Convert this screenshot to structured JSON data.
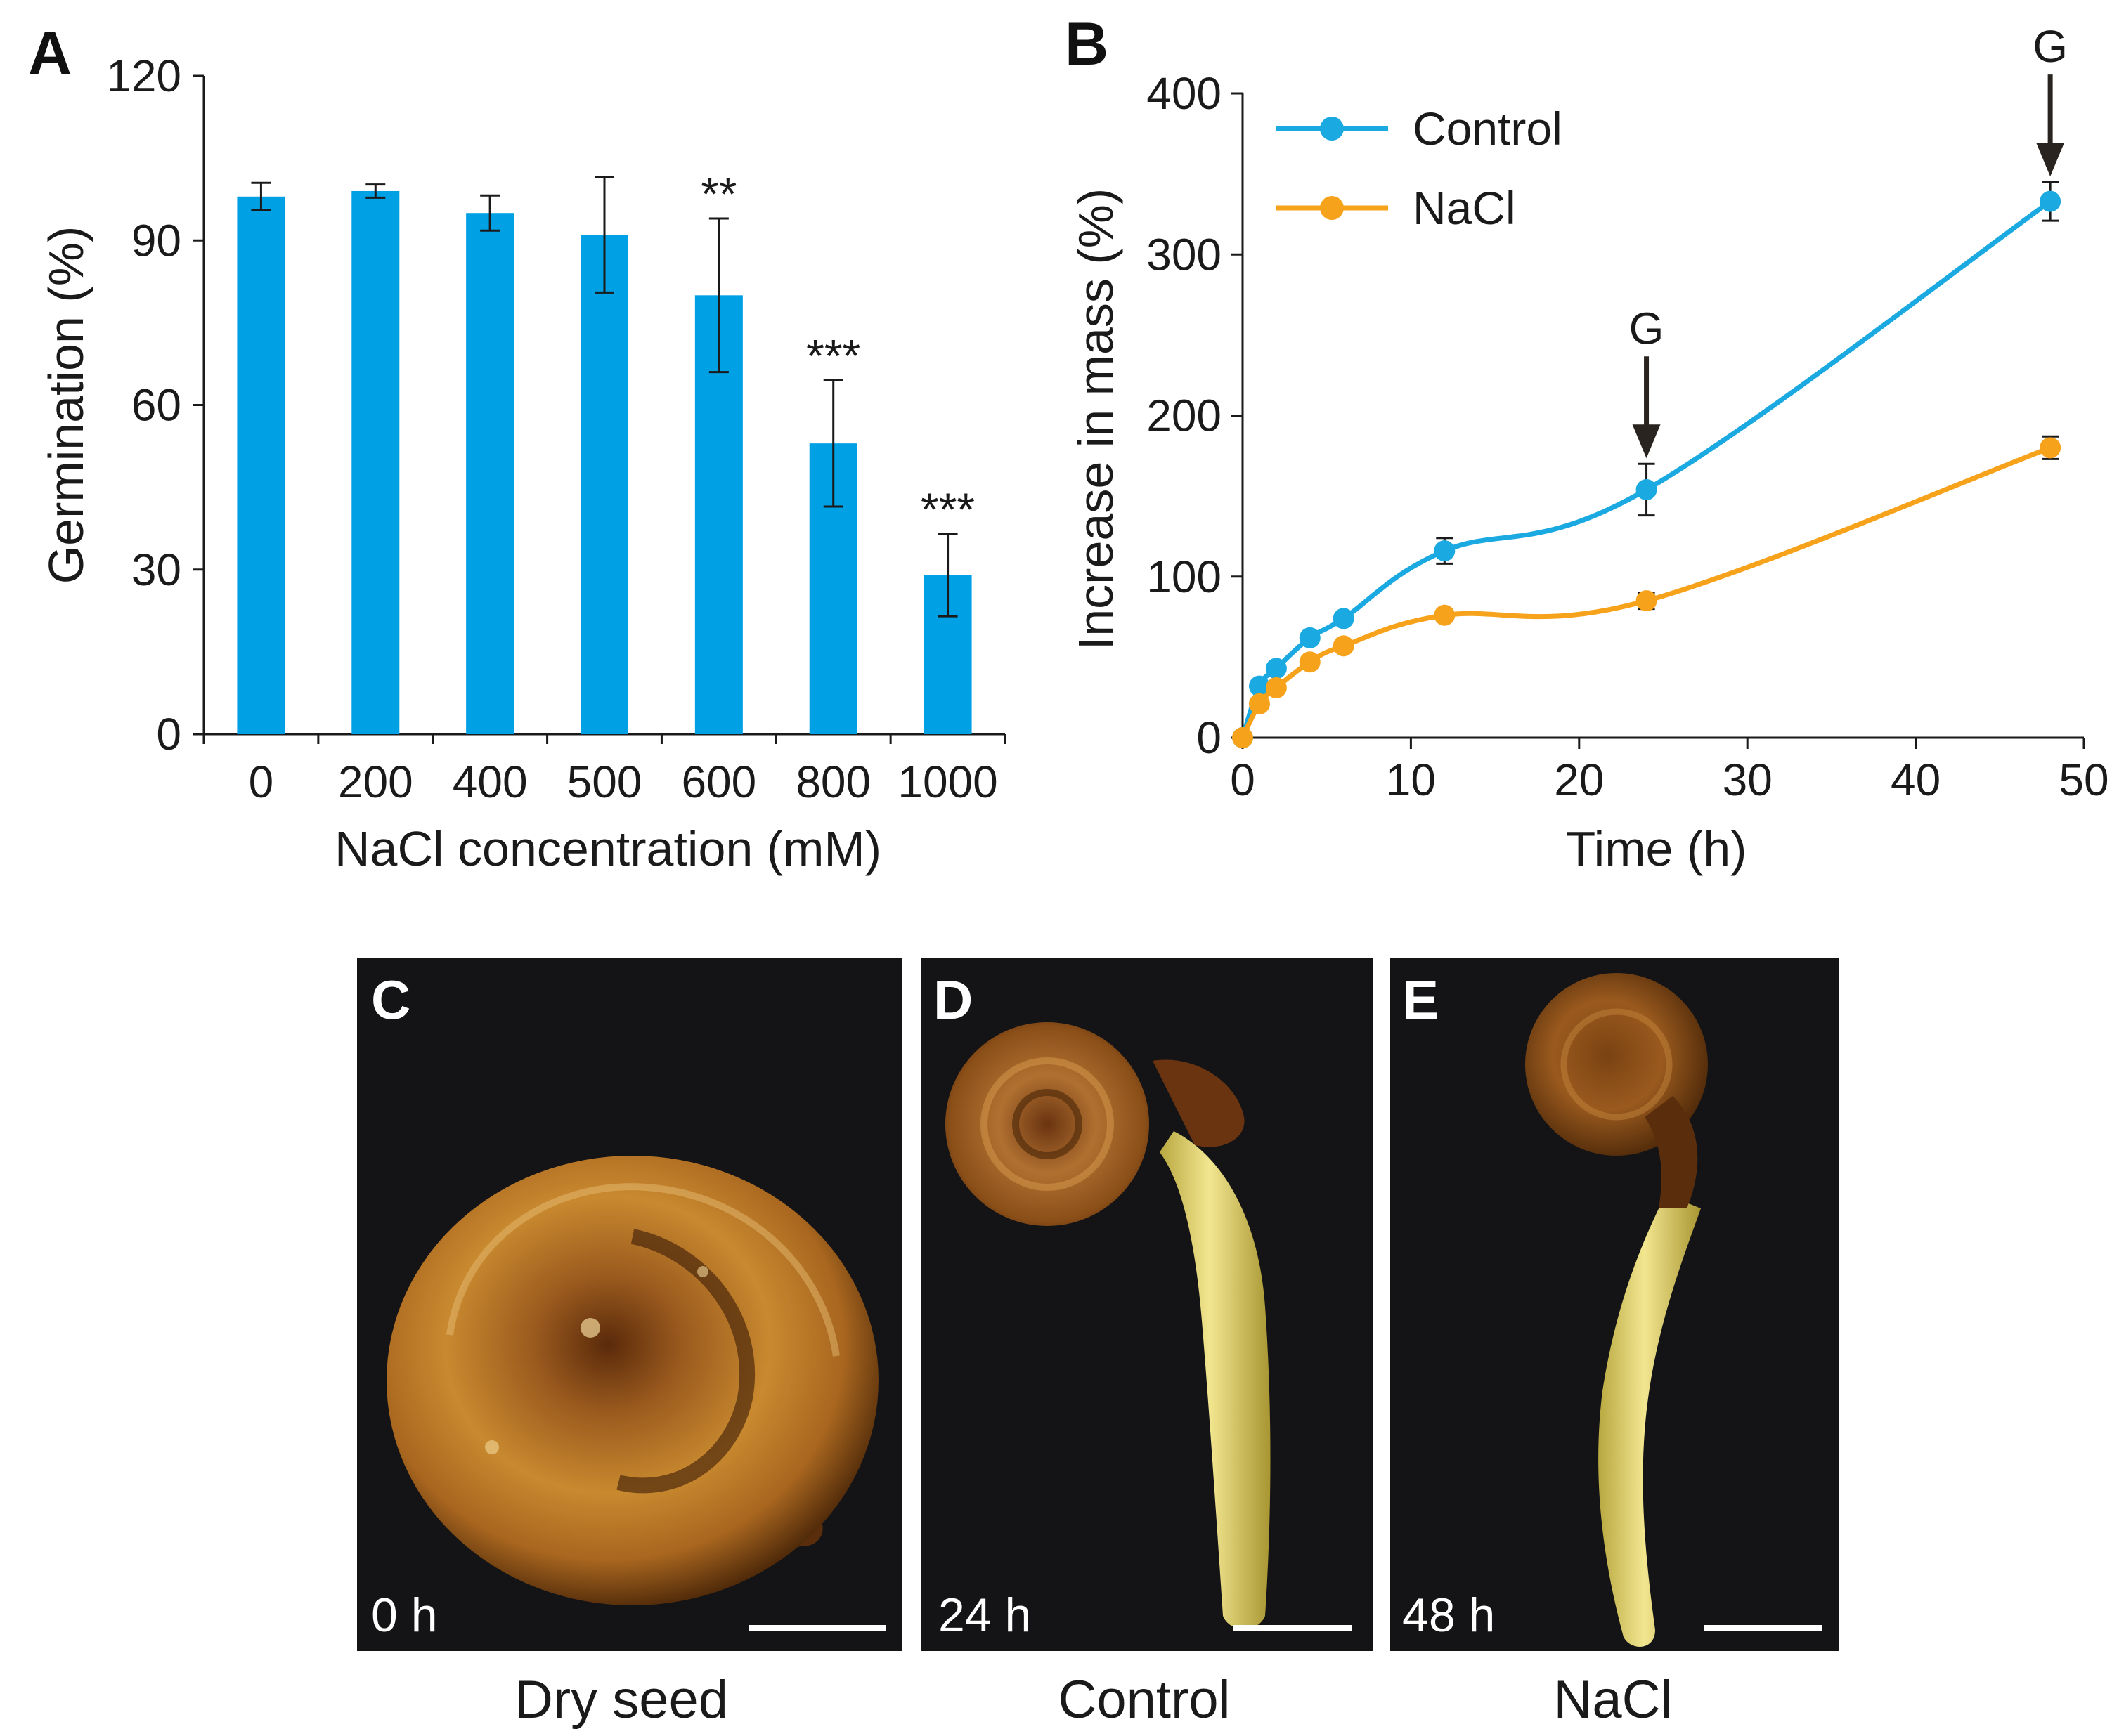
{
  "panels": {
    "A": {
      "letter": "A"
    },
    "B": {
      "letter": "B"
    }
  },
  "chart_data": [
    {
      "type": "bar",
      "panel": "A",
      "categories": [
        "0",
        "200",
        "400",
        "500",
        "600",
        "800",
        "1000"
      ],
      "values": [
        98,
        99,
        95,
        91,
        80,
        53,
        29
      ],
      "errors": [
        2.5,
        1.2,
        3.2,
        10.5,
        14,
        11.5,
        7.5
      ],
      "significance": [
        "",
        "",
        "",
        "",
        "**",
        "***",
        "***"
      ],
      "xlabel": "NaCl concentration (mM)",
      "ylabel": "Germination (%)",
      "ylim": [
        0,
        120
      ],
      "yticks": [
        0,
        30,
        60,
        90,
        120
      ],
      "color": "#00A0E4"
    },
    {
      "type": "line",
      "panel": "B",
      "xlabel": "Time (h)",
      "ylabel": "Increase in mass (%)",
      "xlim": [
        0,
        50
      ],
      "ylim": [
        0,
        400
      ],
      "xticks": [
        0,
        10,
        20,
        30,
        40,
        50
      ],
      "yticks": [
        0,
        100,
        200,
        300,
        400
      ],
      "series": [
        {
          "name": "Control",
          "color": "#1BA9E1",
          "x": [
            0,
            1,
            2,
            4,
            6,
            12,
            24,
            48
          ],
          "y": [
            0,
            32,
            43,
            62,
            74,
            116,
            154,
            333
          ],
          "err": [
            0,
            2,
            2,
            3,
            3,
            8,
            16,
            12
          ]
        },
        {
          "name": "NaCl",
          "color": "#F7A21B",
          "x": [
            0,
            1,
            2,
            4,
            6,
            12,
            24,
            48
          ],
          "y": [
            0,
            21,
            31,
            47,
            57,
            76,
            85,
            180
          ],
          "err": [
            0,
            2,
            2,
            2,
            2,
            3,
            5,
            7
          ]
        }
      ],
      "annotations": [
        {
          "text": "G",
          "x": 24
        },
        {
          "text": "G",
          "x": 48
        }
      ]
    }
  ],
  "photos": [
    {
      "letter": "C",
      "time": "0 h",
      "caption": "Dry seed"
    },
    {
      "letter": "D",
      "time": "24 h",
      "caption": "Control"
    },
    {
      "letter": "E",
      "time": "48 h",
      "caption": "NaCl"
    }
  ]
}
